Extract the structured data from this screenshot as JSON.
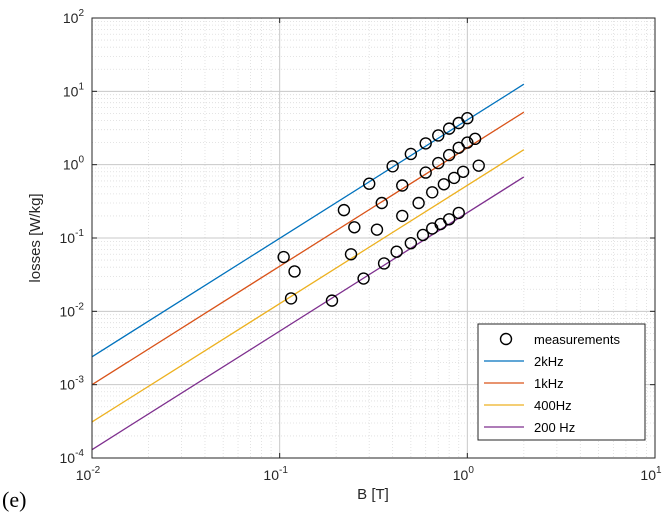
{
  "panel_label": "(e)",
  "chart_data": {
    "type": "scatter",
    "title": "",
    "xlabel": "B [T]",
    "ylabel": "losses [W/kg]",
    "xscale": "log",
    "yscale": "log",
    "xlim": [
      0.01,
      10
    ],
    "ylim": [
      0.0001,
      100
    ],
    "x_ticks": [
      {
        "base": "10",
        "exp": "-2"
      },
      {
        "base": "10",
        "exp": "-1"
      },
      {
        "base": "10",
        "exp": "0"
      },
      {
        "base": "10",
        "exp": "1"
      }
    ],
    "y_ticks": [
      {
        "base": "10",
        "exp": "-4"
      },
      {
        "base": "10",
        "exp": "-3"
      },
      {
        "base": "10",
        "exp": "-2"
      },
      {
        "base": "10",
        "exp": "-1"
      },
      {
        "base": "10",
        "exp": "0"
      },
      {
        "base": "10",
        "exp": "1"
      },
      {
        "base": "10",
        "exp": "2"
      }
    ],
    "grid": true,
    "legend_position": "bottom-right",
    "measurements": {
      "name": "measurements",
      "marker": "open-circle",
      "color": "#000000",
      "points": [
        {
          "x": 0.105,
          "y": 0.055
        },
        {
          "x": 0.22,
          "y": 0.24
        },
        {
          "x": 0.3,
          "y": 0.55
        },
        {
          "x": 0.4,
          "y": 0.95
        },
        {
          "x": 0.5,
          "y": 1.4
        },
        {
          "x": 0.6,
          "y": 1.95
        },
        {
          "x": 0.7,
          "y": 2.5
        },
        {
          "x": 0.8,
          "y": 3.1
        },
        {
          "x": 0.9,
          "y": 3.7
        },
        {
          "x": 1.0,
          "y": 4.3
        },
        {
          "x": 0.12,
          "y": 0.035
        },
        {
          "x": 0.25,
          "y": 0.14
        },
        {
          "x": 0.35,
          "y": 0.3
        },
        {
          "x": 0.45,
          "y": 0.52
        },
        {
          "x": 0.6,
          "y": 0.78
        },
        {
          "x": 0.7,
          "y": 1.05
        },
        {
          "x": 0.8,
          "y": 1.35
        },
        {
          "x": 0.9,
          "y": 1.7
        },
        {
          "x": 1.0,
          "y": 2.0
        },
        {
          "x": 1.1,
          "y": 2.25
        },
        {
          "x": 0.115,
          "y": 0.015
        },
        {
          "x": 0.24,
          "y": 0.06
        },
        {
          "x": 0.33,
          "y": 0.13
        },
        {
          "x": 0.45,
          "y": 0.2
        },
        {
          "x": 0.55,
          "y": 0.3
        },
        {
          "x": 0.65,
          "y": 0.42
        },
        {
          "x": 0.75,
          "y": 0.54
        },
        {
          "x": 0.85,
          "y": 0.66
        },
        {
          "x": 0.95,
          "y": 0.8
        },
        {
          "x": 1.15,
          "y": 0.97
        },
        {
          "x": 0.19,
          "y": 0.014
        },
        {
          "x": 0.28,
          "y": 0.028
        },
        {
          "x": 0.36,
          "y": 0.045
        },
        {
          "x": 0.42,
          "y": 0.065
        },
        {
          "x": 0.5,
          "y": 0.085
        },
        {
          "x": 0.58,
          "y": 0.11
        },
        {
          "x": 0.65,
          "y": 0.135
        },
        {
          "x": 0.72,
          "y": 0.155
        },
        {
          "x": 0.8,
          "y": 0.18
        },
        {
          "x": 0.9,
          "y": 0.22
        }
      ]
    },
    "series": [
      {
        "name": "2kHz",
        "type": "line",
        "color": "#0072BD",
        "x": [
          0.01,
          2
        ],
        "y": [
          0.0024,
          12.5
        ]
      },
      {
        "name": "1kHz",
        "type": "line",
        "color": "#D95319",
        "x": [
          0.01,
          2
        ],
        "y": [
          0.001,
          5.2
        ]
      },
      {
        "name": "400Hz",
        "type": "line",
        "color": "#EDB120",
        "x": [
          0.01,
          2
        ],
        "y": [
          0.00031,
          1.6
        ]
      },
      {
        "name": "200 Hz",
        "type": "line",
        "color": "#7E2F8E",
        "x": [
          0.01,
          2
        ],
        "y": [
          0.00013,
          0.68
        ]
      }
    ]
  }
}
